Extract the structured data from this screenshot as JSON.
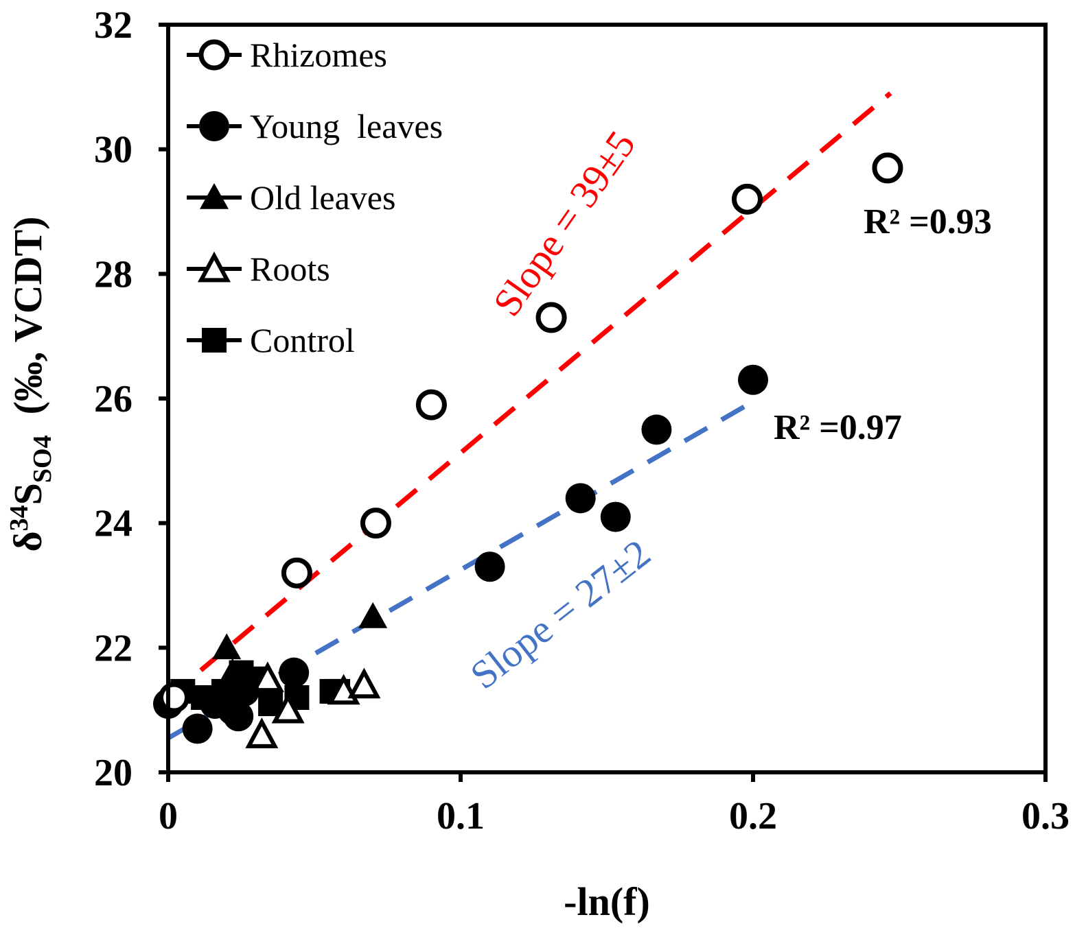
{
  "chart_data": {
    "type": "scatter",
    "title": "",
    "xlabel": "-ln(f)",
    "ylabel": {
      "delta": "δ",
      "mass": "34",
      "element": "S",
      "subscript": "SO4",
      "units": "(‰, VCDT)"
    },
    "xlim": [
      0,
      0.3
    ],
    "ylim": [
      20,
      32
    ],
    "x_ticks": [
      {
        "value": 0,
        "label": "0"
      },
      {
        "value": 0.1,
        "label": "0.1"
      },
      {
        "value": 0.2,
        "label": "0.2"
      },
      {
        "value": 0.3,
        "label": "0.3"
      }
    ],
    "y_ticks": [
      {
        "value": 20,
        "label": "20"
      },
      {
        "value": 22,
        "label": "22"
      },
      {
        "value": 24,
        "label": "24"
      },
      {
        "value": 26,
        "label": "26"
      },
      {
        "value": 28,
        "label": "28"
      },
      {
        "value": 30,
        "label": "30"
      },
      {
        "value": 32,
        "label": "32"
      }
    ],
    "legend_position": "top-left",
    "series": [
      {
        "name": "Rhizomes",
        "marker": "circle-open",
        "points": [
          [
            0.002,
            21.2
          ],
          [
            0.044,
            23.2
          ],
          [
            0.071,
            24.0
          ],
          [
            0.09,
            25.9
          ],
          [
            0.131,
            27.3
          ],
          [
            0.198,
            29.2
          ],
          [
            0.246,
            29.7
          ]
        ]
      },
      {
        "name": "Young  leaves",
        "marker": "circle-filled",
        "points": [
          [
            0.0,
            21.1
          ],
          [
            0.01,
            20.7
          ],
          [
            0.016,
            21.1
          ],
          [
            0.022,
            21.0
          ],
          [
            0.024,
            20.9
          ],
          [
            0.026,
            21.3
          ],
          [
            0.043,
            21.6
          ],
          [
            0.11,
            23.3
          ],
          [
            0.141,
            24.4
          ],
          [
            0.153,
            24.1
          ],
          [
            0.167,
            25.5
          ],
          [
            0.2,
            26.3
          ]
        ]
      },
      {
        "name": "Old leaves",
        "marker": "triangle-filled",
        "points": [
          [
            0.02,
            22.0
          ],
          [
            0.022,
            21.6
          ],
          [
            0.07,
            22.5
          ]
        ]
      },
      {
        "name": "Roots",
        "marker": "triangle-open",
        "points": [
          [
            0.032,
            20.6
          ],
          [
            0.034,
            21.5
          ],
          [
            0.041,
            21.0
          ],
          [
            0.06,
            21.3
          ],
          [
            0.067,
            21.4
          ]
        ]
      },
      {
        "name": "Control",
        "marker": "square-filled",
        "points": [
          [
            0.005,
            21.3
          ],
          [
            0.012,
            21.2
          ],
          [
            0.019,
            21.3
          ],
          [
            0.025,
            21.6
          ],
          [
            0.03,
            21.5
          ],
          [
            0.035,
            21.1
          ],
          [
            0.044,
            21.2
          ],
          [
            0.056,
            21.3
          ],
          [
            0.058,
            21.3
          ]
        ]
      }
    ],
    "fit_lines": [
      {
        "name": "rhizomes-fit",
        "color": "#ff0000",
        "x": [
          0.0,
          0.247
        ],
        "y": [
          21.2,
          30.9
        ]
      },
      {
        "name": "young-leaves-fit",
        "color": "#4472c4",
        "x": [
          0.0,
          0.2
        ],
        "y": [
          20.55,
          25.95
        ]
      }
    ],
    "annotations": {
      "r2_rhizomes": "R² =0.93",
      "r2_young_leaves": "R² =0.97",
      "slope_rhizomes": "Slope = 39±5",
      "slope_young_leaves": "Slope = 27±2"
    },
    "colors": {
      "rhizomes_fit": "#ff0000",
      "young_leaves_fit": "#4472c4",
      "markers": "#000000"
    }
  }
}
